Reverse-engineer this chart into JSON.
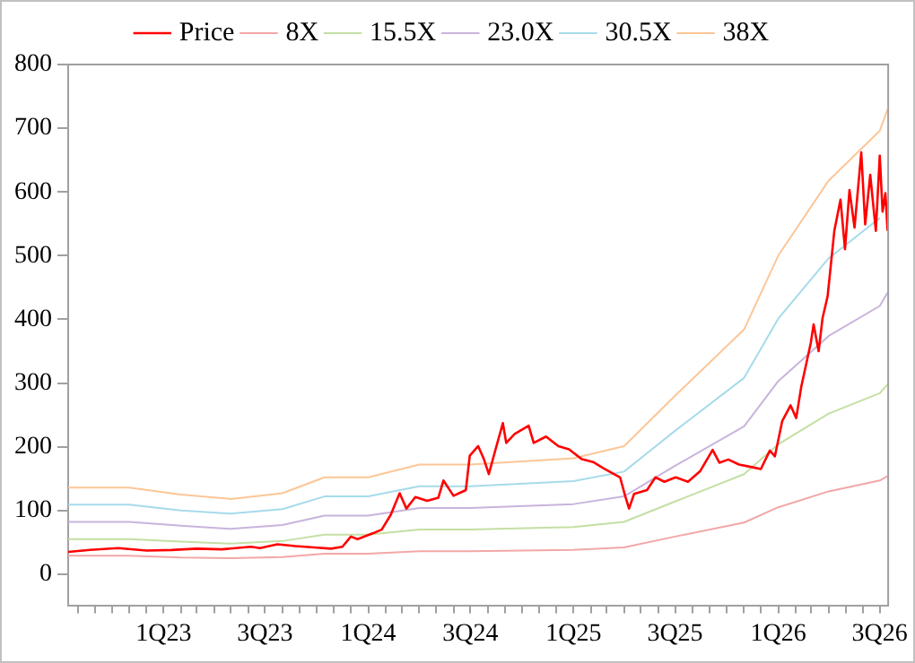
{
  "chart_data": {
    "type": "line",
    "x": [
      "2022-07-15",
      "2022-11-01",
      "2023-02-01",
      "2023-05-01",
      "2023-08-01",
      "2023-10-15",
      "2024-01-01",
      "2024-04-01",
      "2024-07-01",
      "2025-01-01",
      "2025-04-01",
      "2025-07-01",
      "2025-11-01",
      "2026-01-01",
      "2026-04-01",
      "2026-07-01",
      "2026-07-15"
    ],
    "series": [
      {
        "name": "Price",
        "color": "#ff0000",
        "x": [
          "2022-07-15",
          "2022-08-23",
          "2022-10-12",
          "2022-12-02",
          "2023-01-15",
          "2023-03-01",
          "2023-04-15",
          "2023-06-06",
          "2023-06-22",
          "2023-07-23",
          "2023-08-24",
          "2023-09-26",
          "2023-10-27",
          "2023-11-16",
          "2023-12-01",
          "2023-12-13",
          "2024-01-09",
          "2024-01-25",
          "2024-02-10",
          "2024-02-26",
          "2024-03-09",
          "2024-03-25",
          "2024-04-15",
          "2024-05-05",
          "2024-05-14",
          "2024-06-01",
          "2024-06-23",
          "2024-06-30",
          "2024-07-15",
          "2024-07-25",
          "2024-08-03",
          "2024-08-15",
          "2024-08-28",
          "2024-09-03",
          "2024-09-18",
          "2024-10-13",
          "2024-10-22",
          "2024-11-13",
          "2024-12-05",
          "2024-12-24",
          "2025-01-15",
          "2025-02-05",
          "2025-02-24",
          "2025-03-25",
          "2025-04-03",
          "2025-04-10",
          "2025-04-19",
          "2025-05-12",
          "2025-05-27",
          "2025-06-12",
          "2025-07-02",
          "2025-07-24",
          "2025-08-15",
          "2025-09-06",
          "2025-09-18",
          "2025-10-04",
          "2025-10-23",
          "2025-11-15",
          "2025-12-01",
          "2025-12-17",
          "2025-12-26",
          "2026-01-08",
          "2026-01-23",
          "2026-02-02",
          "2026-02-11",
          "2026-02-28",
          "2026-03-05",
          "2026-03-14",
          "2026-03-21",
          "2026-03-30",
          "2026-04-11",
          "2026-04-22",
          "2026-04-30",
          "2026-05-08",
          "2026-05-17",
          "2026-05-29",
          "2026-06-05",
          "2026-06-14",
          "2026-06-24",
          "2026-07-01",
          "2026-07-06",
          "2026-07-11",
          "2026-07-15"
        ],
        "values": [
          35,
          38,
          41,
          37,
          38,
          40,
          39,
          43,
          41,
          47,
          44,
          42,
          40,
          43,
          59,
          55,
          64,
          70,
          93,
          127,
          103,
          121,
          115,
          120,
          147,
          123,
          132,
          186,
          201,
          181,
          157,
          196,
          237,
          206,
          220,
          233,
          206,
          216,
          201,
          196,
          181,
          176,
          166,
          152,
          123,
          103,
          126,
          132,
          152,
          145,
          152,
          145,
          162,
          195,
          175,
          180,
          172,
          168,
          165,
          194,
          185,
          240,
          265,
          245,
          294,
          363,
          392,
          350,
          402,
          436,
          539,
          588,
          510,
          603,
          544,
          662,
          549,
          627,
          539,
          657,
          569,
          598,
          539
        ]
      },
      {
        "name": "8X",
        "color": "#f2a7a7",
        "values": [
          29,
          29,
          26,
          25,
          27,
          32,
          32,
          36,
          36,
          38,
          42,
          59,
          81,
          105,
          130,
          147,
          154
        ]
      },
      {
        "name": "15.5X",
        "color": "#c4dfa4",
        "values": [
          55,
          55,
          51,
          48,
          52,
          62,
          62,
          70,
          70,
          74,
          82,
          114,
          157,
          204,
          252,
          284,
          298
        ]
      },
      {
        "name": "23.0X",
        "color": "#c8b4dc",
        "values": [
          82,
          82,
          76,
          71,
          77,
          92,
          92,
          104,
          104,
          110,
          122,
          170,
          232,
          303,
          374,
          421,
          442
        ]
      },
      {
        "name": "30.5X",
        "color": "#a6dbea",
        "values": [
          109,
          109,
          100,
          95,
          102,
          122,
          122,
          138,
          138,
          146,
          161,
          225,
          308,
          401,
          496,
          559,
          null
        ]
      },
      {
        "name": "38X",
        "color": "#fcc697",
        "values": [
          136,
          136,
          125,
          118,
          127,
          152,
          152,
          172,
          172,
          182,
          201,
          280,
          384,
          500,
          618,
          696,
          730
        ]
      }
    ],
    "xlim": [
      "2022-07-15",
      "2026-07-16"
    ],
    "xticks": [
      {
        "value": "2022-08-01",
        "label": null
      },
      {
        "value": "2022-09-01",
        "label": null
      },
      {
        "value": "2022-10-01",
        "label": null
      },
      {
        "value": "2022-11-01",
        "label": null
      },
      {
        "value": "2022-12-01",
        "label": null
      },
      {
        "value": "2023-01-01",
        "label": "1Q23"
      },
      {
        "value": "2023-02-01",
        "label": null
      },
      {
        "value": "2023-03-01",
        "label": null
      },
      {
        "value": "2023-04-01",
        "label": null
      },
      {
        "value": "2023-05-01",
        "label": null
      },
      {
        "value": "2023-06-01",
        "label": null
      },
      {
        "value": "2023-07-01",
        "label": "3Q23"
      },
      {
        "value": "2023-08-01",
        "label": null
      },
      {
        "value": "2023-09-01",
        "label": null
      },
      {
        "value": "2023-10-01",
        "label": null
      },
      {
        "value": "2023-11-01",
        "label": null
      },
      {
        "value": "2023-12-01",
        "label": null
      },
      {
        "value": "2024-01-01",
        "label": "1Q24"
      },
      {
        "value": "2024-02-01",
        "label": null
      },
      {
        "value": "2024-03-01",
        "label": null
      },
      {
        "value": "2024-04-01",
        "label": null
      },
      {
        "value": "2024-05-01",
        "label": null
      },
      {
        "value": "2024-06-01",
        "label": null
      },
      {
        "value": "2024-07-01",
        "label": "3Q24"
      },
      {
        "value": "2024-08-01",
        "label": null
      },
      {
        "value": "2024-09-01",
        "label": null
      },
      {
        "value": "2024-10-01",
        "label": null
      },
      {
        "value": "2024-11-01",
        "label": null
      },
      {
        "value": "2024-12-01",
        "label": null
      },
      {
        "value": "2025-01-01",
        "label": "1Q25"
      },
      {
        "value": "2025-02-01",
        "label": null
      },
      {
        "value": "2025-03-01",
        "label": null
      },
      {
        "value": "2025-04-01",
        "label": null
      },
      {
        "value": "2025-05-01",
        "label": null
      },
      {
        "value": "2025-06-01",
        "label": null
      },
      {
        "value": "2025-07-01",
        "label": "3Q25"
      },
      {
        "value": "2025-08-01",
        "label": null
      },
      {
        "value": "2025-09-01",
        "label": null
      },
      {
        "value": "2025-10-01",
        "label": null
      },
      {
        "value": "2025-11-01",
        "label": null
      },
      {
        "value": "2025-12-01",
        "label": null
      },
      {
        "value": "2026-01-01",
        "label": "1Q26"
      },
      {
        "value": "2026-02-01",
        "label": null
      },
      {
        "value": "2026-03-01",
        "label": null
      },
      {
        "value": "2026-04-01",
        "label": null
      },
      {
        "value": "2026-05-01",
        "label": null
      },
      {
        "value": "2026-06-01",
        "label": null
      },
      {
        "value": "2026-07-01",
        "label": "3Q26"
      }
    ],
    "ylim": [
      -50,
      800
    ],
    "yticks": [
      0,
      100,
      200,
      300,
      400,
      500,
      600,
      700,
      800
    ],
    "grid": false,
    "legend": "top",
    "marker": "none",
    "line_style": "solid"
  }
}
